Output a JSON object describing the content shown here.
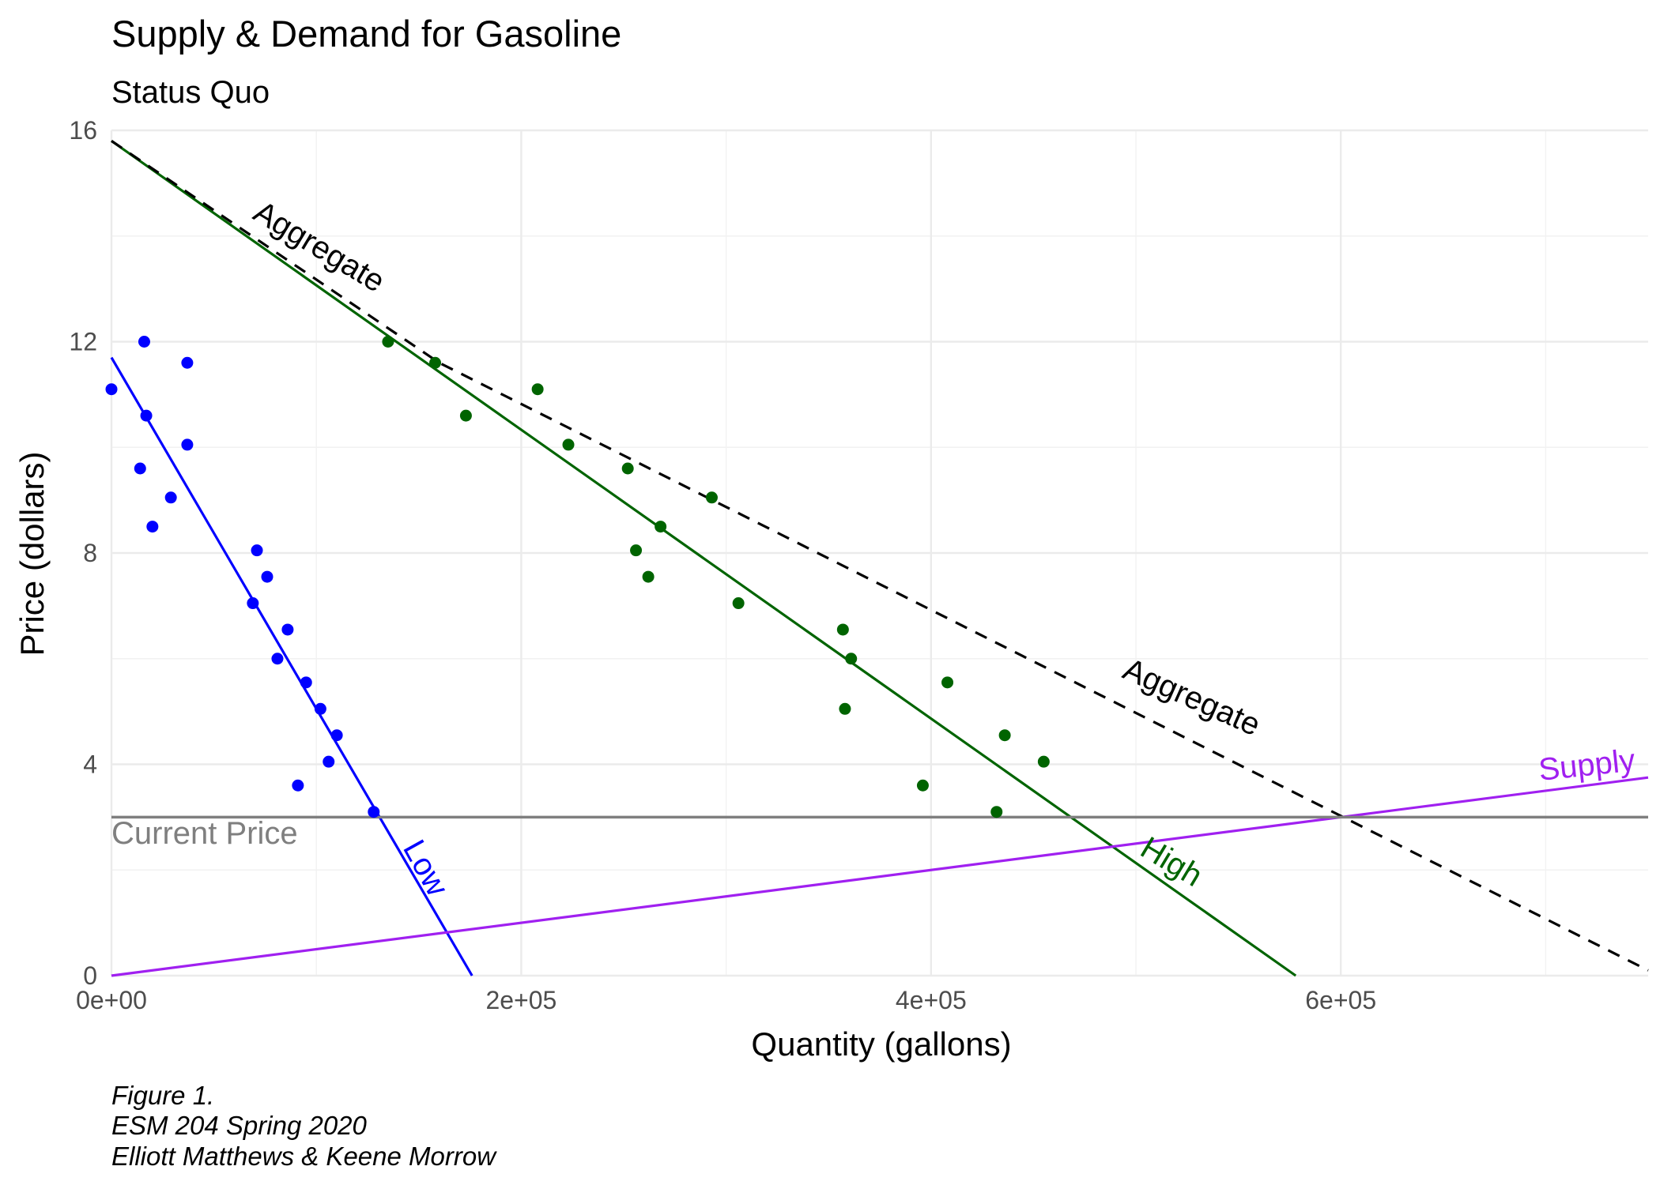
{
  "chart_data": {
    "type": "scatter",
    "title": "Supply & Demand for Gasoline",
    "subtitle": "Status Quo",
    "xlabel": "Quantity (gallons)",
    "ylabel": "Price (dollars)",
    "xlim": [
      0,
      750000
    ],
    "ylim": [
      0,
      16
    ],
    "x_ticks": [
      0,
      200000,
      400000,
      600000
    ],
    "x_tick_labels": [
      "0e+00",
      "2e+05",
      "4e+05",
      "6e+05"
    ],
    "y_ticks": [
      0,
      4,
      8,
      12,
      16
    ],
    "y_tick_labels": [
      "0",
      "4",
      "8",
      "12",
      "16"
    ],
    "grid": true,
    "legend": "none",
    "colors": {
      "low": "#0000ff",
      "high": "#006400",
      "aggregate": "#000000",
      "supply": "#a020f0",
      "current_price": "#7f7f7f"
    },
    "series": [
      {
        "name": "Low",
        "color": "#0000ff",
        "points": [
          [
            0,
            11.1
          ],
          [
            16000,
            12.0
          ],
          [
            14000,
            9.6
          ],
          [
            17000,
            10.6
          ],
          [
            20000,
            8.5
          ],
          [
            29000,
            9.05
          ],
          [
            37000,
            11.6
          ],
          [
            37000,
            10.05
          ],
          [
            69000,
            7.05
          ],
          [
            71000,
            8.05
          ],
          [
            76000,
            7.55
          ],
          [
            81000,
            6.0
          ],
          [
            86000,
            6.55
          ],
          [
            91000,
            3.6
          ],
          [
            95000,
            5.55
          ],
          [
            102000,
            5.05
          ],
          [
            106000,
            4.05
          ],
          [
            110000,
            4.55
          ],
          [
            128000,
            3.1
          ]
        ]
      },
      {
        "name": "High",
        "color": "#006400",
        "points": [
          [
            135000,
            12.0
          ],
          [
            158000,
            11.6
          ],
          [
            173000,
            10.6
          ],
          [
            208000,
            11.1
          ],
          [
            223000,
            10.05
          ],
          [
            252000,
            9.6
          ],
          [
            256000,
            8.05
          ],
          [
            262000,
            7.55
          ],
          [
            268000,
            8.5
          ],
          [
            293000,
            9.05
          ],
          [
            306000,
            7.05
          ],
          [
            357000,
            6.55
          ],
          [
            358000,
            5.05
          ],
          [
            361000,
            6.0
          ],
          [
            408000,
            5.55
          ],
          [
            396000,
            3.6
          ],
          [
            436000,
            4.55
          ],
          [
            432000,
            3.1
          ],
          [
            455000,
            4.05
          ]
        ]
      }
    ],
    "lines": [
      {
        "name": "Low",
        "type": "demand",
        "color": "#0000ff",
        "x": [
          0,
          176000
        ],
        "y": [
          11.7,
          0
        ]
      },
      {
        "name": "High",
        "type": "demand",
        "color": "#006400",
        "x": [
          0,
          578000
        ],
        "y": [
          15.8,
          0
        ]
      },
      {
        "name": "Aggregate",
        "type": "aggregate demand",
        "style": "dashed",
        "color": "#000000",
        "x": [
          0,
          160000,
          750000
        ],
        "y": [
          15.8,
          11.6,
          0.1
        ]
      },
      {
        "name": "Supply",
        "type": "supply",
        "color": "#a020f0",
        "x": [
          0,
          750000
        ],
        "y": [
          0,
          3.75
        ]
      },
      {
        "name": "Current Price",
        "type": "hline",
        "color": "#7f7f7f",
        "y": 3.0
      }
    ],
    "annotations": [
      {
        "text": "Aggregate",
        "series": "aggregate-upper"
      },
      {
        "text": "Aggregate",
        "series": "aggregate-lower"
      },
      {
        "text": "Low",
        "series": "low"
      },
      {
        "text": "High",
        "series": "high"
      },
      {
        "text": "Supply",
        "series": "supply"
      },
      {
        "text": "Current Price",
        "series": "current-price"
      }
    ],
    "caption": [
      "Figure 1.",
      "ESM 204 Spring 2020",
      "Elliott Matthews & Keene Morrow"
    ]
  }
}
